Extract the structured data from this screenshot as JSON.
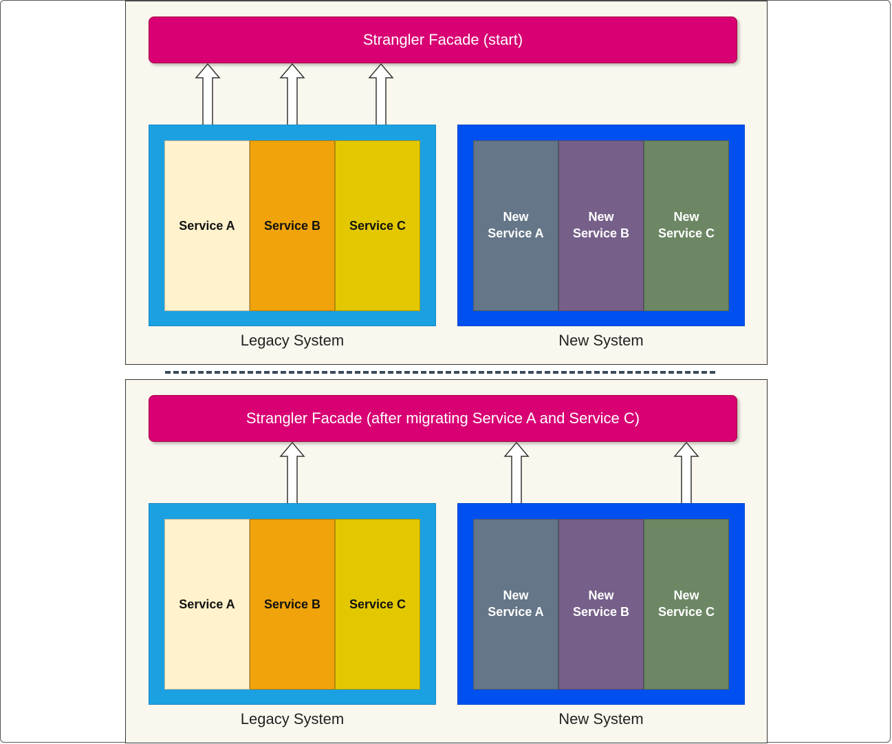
{
  "diagrams": [
    {
      "facade_label": "Strangler Facade (start)",
      "legacy": {
        "label": "Legacy System",
        "services": [
          "Service A",
          "Service B",
          "Service C"
        ]
      },
      "new_system": {
        "label": "New System",
        "services": [
          [
            "New",
            "Service A"
          ],
          [
            "New",
            "Service B"
          ],
          [
            "New",
            "Service C"
          ]
        ]
      }
    },
    {
      "facade_label": "Strangler Facade (after migrating Service A and Service C)",
      "legacy": {
        "label": "Legacy System",
        "services": [
          "Service A",
          "Service B",
          "Service C"
        ]
      },
      "new_system": {
        "label": "New System",
        "services": [
          [
            "New",
            "Service A"
          ],
          [
            "New",
            "Service B"
          ],
          [
            "New",
            "Service C"
          ]
        ]
      }
    }
  ],
  "colors": {
    "facade": "#d80073",
    "legacy_system": "#1ba1e2",
    "new_system": "#0050ef",
    "legacy_service_a": "#fff2cc",
    "legacy_service_b": "#f0a30a",
    "legacy_service_c": "#e3c800",
    "new_service_a": "#647687",
    "new_service_b": "#76608a",
    "new_service_c": "#6d8764",
    "panel_background": "#faf7ee"
  }
}
